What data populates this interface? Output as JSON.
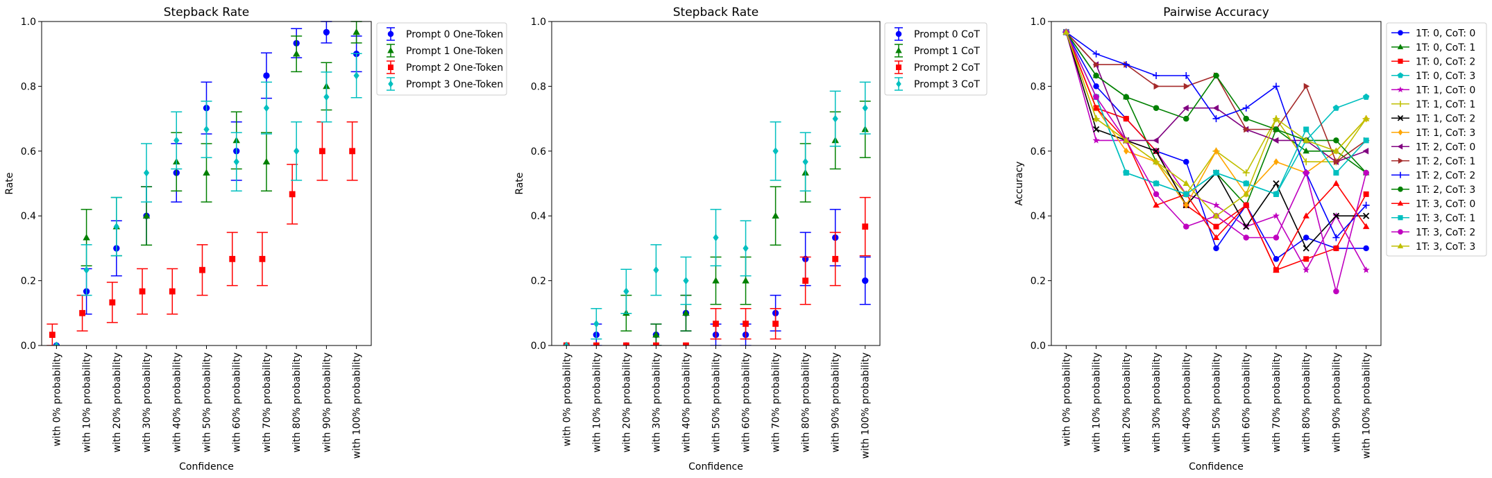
{
  "chart_data": [
    {
      "type": "scatter",
      "title": "Stepback Rate",
      "xlabel": "Confidence",
      "ylabel": "Rate",
      "ylim": [
        0,
        1
      ],
      "yticks": [
        "0.0",
        "0.2",
        "0.4",
        "0.6",
        "0.8",
        "1.0"
      ],
      "categories": [
        "with 0% probability",
        "with 10% probability",
        "with 20% probability",
        "with 30% probability",
        "with 40% probability",
        "with 50% probability",
        "with 60% probability",
        "with 70% probability",
        "with 80% probability",
        "with 90% probability",
        "with 100% probability"
      ],
      "legend_position": "outside-upper-right",
      "error_bars": true,
      "series": [
        {
          "name": "Prompt 0 One-Token",
          "color": "#0000ff",
          "marker": "circle",
          "offset": 0,
          "values": [
            0,
            0.167,
            0.3,
            0.4,
            0.533,
            0.733,
            0.6,
            0.833,
            0.933,
            0.967,
            0.9
          ],
          "err": [
            0,
            0.07,
            0.085,
            0.09,
            0.09,
            0.08,
            0.09,
            0.07,
            0.045,
            0.033,
            0.055
          ]
        },
        {
          "name": "Prompt 1 One-Token",
          "color": "#008000",
          "marker": "triangle-up",
          "offset": 0,
          "values": [
            0,
            0.333,
            0.367,
            0.4,
            0.567,
            0.533,
            0.633,
            0.567,
            0.9,
            0.8,
            0.967
          ],
          "err": [
            0,
            0.087,
            0.09,
            0.09,
            0.09,
            0.09,
            0.088,
            0.09,
            0.055,
            0.073,
            0.033
          ]
        },
        {
          "name": "Prompt 2 One-Token",
          "color": "#ff0000",
          "marker": "square",
          "offset": -1,
          "values": [
            0.033,
            0.1,
            0.133,
            0.167,
            0.167,
            0.233,
            0.267,
            0.267,
            0.467,
            0.6,
            0.6
          ],
          "err": [
            0.033,
            0.055,
            0.062,
            0.07,
            0.07,
            0.078,
            0.082,
            0.082,
            0.092,
            0.09,
            0.09
          ]
        },
        {
          "name": "Prompt 3 One-Token",
          "color": "#00bfbf",
          "marker": "diamond",
          "offset": 0,
          "values": [
            0,
            0.233,
            0.367,
            0.533,
            0.633,
            0.667,
            0.567,
            0.733,
            0.6,
            0.767,
            0.833
          ],
          "err": [
            0,
            0.078,
            0.09,
            0.09,
            0.088,
            0.087,
            0.09,
            0.08,
            0.09,
            0.077,
            0.068
          ]
        }
      ]
    },
    {
      "type": "scatter",
      "title": "Stepback Rate",
      "xlabel": "Confidence",
      "ylabel": "Rate",
      "ylim": [
        0,
        1
      ],
      "yticks": [
        "0.0",
        "0.2",
        "0.4",
        "0.6",
        "0.8",
        "1.0"
      ],
      "categories": [
        "with 0% probability",
        "with 10% probability",
        "with 20% probability",
        "with 30% probability",
        "with 40% probability",
        "with 50% probability",
        "with 60% probability",
        "with 70% probability",
        "with 80% probability",
        "with 90% probability",
        "with 100% probability"
      ],
      "legend_position": "outside-upper-right",
      "error_bars": true,
      "series": [
        {
          "name": "Prompt 0 CoT",
          "color": "#0000ff",
          "marker": "circle",
          "offset": 0,
          "values": [
            0,
            0.033,
            0,
            0.033,
            0.1,
            0.033,
            0.033,
            0.1,
            0.267,
            0.333,
            0.2
          ],
          "err": [
            0,
            0.033,
            0,
            0.033,
            0.055,
            0.033,
            0.033,
            0.055,
            0.082,
            0.087,
            0.073
          ]
        },
        {
          "name": "Prompt 1 CoT",
          "color": "#008000",
          "marker": "triangle-up",
          "offset": 0,
          "values": [
            0,
            0,
            0.1,
            0.033,
            0.1,
            0.2,
            0.2,
            0.4,
            0.533,
            0.633,
            0.667
          ],
          "err": [
            0,
            0,
            0.055,
            0.033,
            0.055,
            0.073,
            0.073,
            0.09,
            0.09,
            0.088,
            0.087
          ]
        },
        {
          "name": "Prompt 2 CoT",
          "color": "#ff0000",
          "marker": "square",
          "offset": 0,
          "values": [
            0,
            0,
            0,
            0,
            0,
            0.067,
            0.067,
            0.067,
            0.2,
            0.267,
            0.367
          ],
          "err": [
            0,
            0,
            0,
            0,
            0,
            0.047,
            0.047,
            0.047,
            0.073,
            0.082,
            0.09
          ]
        },
        {
          "name": "Prompt 3 CoT",
          "color": "#00bfbf",
          "marker": "diamond",
          "offset": 0,
          "values": [
            0,
            0.067,
            0.167,
            0.233,
            0.2,
            0.333,
            0.3,
            0.6,
            0.567,
            0.7,
            0.733
          ],
          "err": [
            0,
            0.047,
            0.068,
            0.078,
            0.073,
            0.087,
            0.085,
            0.09,
            0.09,
            0.085,
            0.08
          ]
        }
      ]
    },
    {
      "type": "line",
      "title": "Pairwise Accuracy",
      "xlabel": "Confidence",
      "ylabel": "Accuracy",
      "ylim": [
        0,
        1
      ],
      "yticks": [
        "0.0",
        "0.2",
        "0.4",
        "0.6",
        "0.8",
        "1.0"
      ],
      "categories": [
        "with 0% probability",
        "with 10% probability",
        "with 20% probability",
        "with 30% probability",
        "with 40% probability",
        "with 50% probability",
        "with 60% probability",
        "with 70% probability",
        "with 80% probability",
        "with 90% probability",
        "with 100% probability"
      ],
      "legend_position": "outside-upper-right",
      "series": [
        {
          "name": "1T: 0, CoT: 0",
          "color": "#0000ff",
          "marker": "circle",
          "values": [
            0.967,
            0.8,
            0.7,
            0.6,
            0.567,
            0.3,
            0.433,
            0.267,
            0.333,
            0.3,
            0.3
          ]
        },
        {
          "name": "1T: 0, CoT: 1",
          "color": "#008000",
          "marker": "triangle-up",
          "values": [
            0.967,
            0.833,
            0.767,
            0.567,
            0.433,
            0.533,
            0.433,
            0.667,
            0.6,
            0.6,
            0.533
          ]
        },
        {
          "name": "1T: 0, CoT: 2",
          "color": "#ff0000",
          "marker": "square",
          "values": [
            0.967,
            0.733,
            0.7,
            0.6,
            0.433,
            0.367,
            0.433,
            0.233,
            0.267,
            0.3,
            0.467
          ]
        },
        {
          "name": "1T: 0, CoT: 3",
          "color": "#00bfbf",
          "marker": "pentagon",
          "values": [
            0.967,
            0.767,
            0.533,
            0.5,
            0.467,
            0.533,
            0.5,
            0.467,
            0.633,
            0.733,
            0.767
          ]
        },
        {
          "name": "1T: 1, CoT: 0",
          "color": "#bf00bf",
          "marker": "star",
          "values": [
            0.967,
            0.633,
            0.633,
            0.6,
            0.467,
            0.433,
            0.367,
            0.4,
            0.233,
            0.4,
            0.233
          ]
        },
        {
          "name": "1T: 1, CoT: 1",
          "color": "#bfbf00",
          "marker": "plus",
          "values": [
            0.967,
            0.7,
            0.633,
            0.567,
            0.467,
            0.6,
            0.533,
            0.7,
            0.567,
            0.567,
            0.7
          ]
        },
        {
          "name": "1T: 1, CoT: 2",
          "color": "#000000",
          "marker": "x",
          "values": [
            0.967,
            0.667,
            0.633,
            0.6,
            0.433,
            0.533,
            0.367,
            0.5,
            0.3,
            0.4,
            0.4
          ]
        },
        {
          "name": "1T: 1, CoT: 3",
          "color": "#ffa500",
          "marker": "diamond",
          "values": [
            0.967,
            0.733,
            0.6,
            0.567,
            0.433,
            0.6,
            0.467,
            0.567,
            0.533,
            0.6,
            0.7
          ]
        },
        {
          "name": "1T: 2, CoT: 0",
          "color": "#800080",
          "marker": "triangle-left",
          "values": [
            0.967,
            0.867,
            0.633,
            0.633,
            0.733,
            0.733,
            0.667,
            0.633,
            0.633,
            0.567,
            0.6
          ]
        },
        {
          "name": "1T: 2, CoT: 1",
          "color": "#a52a2a",
          "marker": "triangle-right",
          "values": [
            0.967,
            0.867,
            0.867,
            0.8,
            0.8,
            0.833,
            0.667,
            0.667,
            0.8,
            0.567,
            0.633
          ]
        },
        {
          "name": "1T: 2, CoT: 2",
          "color": "#0000ff",
          "marker": "plus",
          "values": [
            0.967,
            0.9,
            0.867,
            0.833,
            0.833,
            0.7,
            0.733,
            0.8,
            0.533,
            0.333,
            0.433
          ]
        },
        {
          "name": "1T: 2, CoT: 3",
          "color": "#008000",
          "marker": "circle",
          "values": [
            0.967,
            0.833,
            0.767,
            0.733,
            0.7,
            0.833,
            0.7,
            0.667,
            0.633,
            0.633,
            0.533
          ]
        },
        {
          "name": "1T: 3, CoT: 0",
          "color": "#ff0000",
          "marker": "triangle-up",
          "values": [
            0.967,
            0.733,
            0.633,
            0.433,
            0.467,
            0.333,
            0.433,
            0.233,
            0.4,
            0.5,
            0.367
          ]
        },
        {
          "name": "1T: 3, CoT: 1",
          "color": "#00bfbf",
          "marker": "square",
          "values": [
            0.967,
            0.767,
            0.533,
            0.5,
            0.467,
            0.533,
            0.5,
            0.467,
            0.667,
            0.533,
            0.633
          ]
        },
        {
          "name": "1T: 3, CoT: 2",
          "color": "#bf00bf",
          "marker": "circle",
          "values": [
            0.967,
            0.767,
            0.633,
            0.467,
            0.367,
            0.4,
            0.333,
            0.333,
            0.533,
            0.167,
            0.533
          ]
        },
        {
          "name": "1T: 3, CoT: 3",
          "color": "#bfbf00",
          "marker": "triangle-up",
          "values": [
            0.967,
            0.7,
            0.633,
            0.567,
            0.5,
            0.4,
            0.467,
            0.7,
            0.633,
            0.6,
            0.7
          ]
        }
      ]
    }
  ]
}
